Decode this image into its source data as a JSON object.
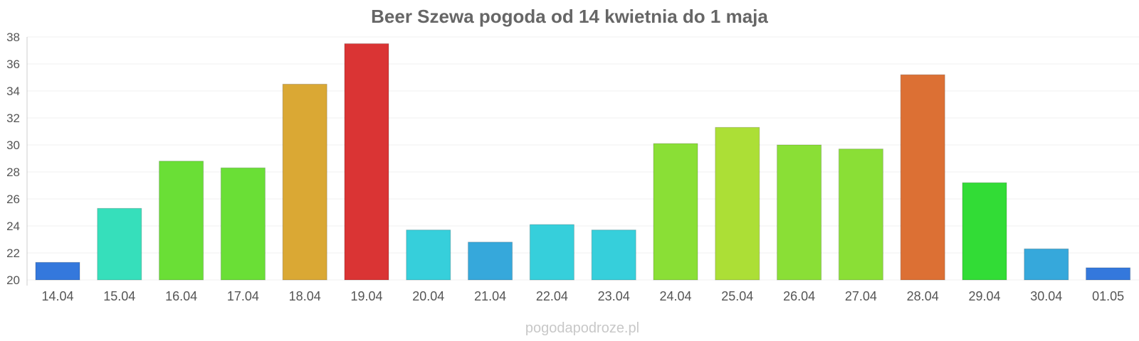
{
  "chart_data": {
    "type": "bar",
    "title": "Beer Szewa pogoda od 14 kwietnia do 1 maja",
    "xlabel": "",
    "ylabel": "",
    "ylim": [
      20,
      38
    ],
    "yticks": [
      20,
      22,
      24,
      26,
      28,
      30,
      32,
      34,
      36,
      38
    ],
    "grid": true,
    "legend": "none",
    "categories": [
      "14.04",
      "15.04",
      "16.04",
      "17.04",
      "18.04",
      "19.04",
      "20.04",
      "21.04",
      "22.04",
      "23.04",
      "24.04",
      "25.04",
      "26.04",
      "27.04",
      "28.04",
      "29.04",
      "30.04",
      "01.05"
    ],
    "values": [
      21.3,
      25.3,
      28.8,
      28.3,
      34.5,
      37.5,
      23.7,
      22.8,
      24.1,
      23.7,
      30.1,
      31.3,
      30.0,
      29.7,
      35.2,
      27.2,
      22.3,
      20.9
    ],
    "colors": [
      "#3478dc",
      "#36dfbb",
      "#6adf36",
      "#6adf36",
      "#daa834",
      "#da3434",
      "#36cfdb",
      "#36a8db",
      "#36cfdb",
      "#36cfdb",
      "#8adf36",
      "#acdf36",
      "#8adf36",
      "#8adf36",
      "#dc7034",
      "#32dc36",
      "#36a8db",
      "#3478dc"
    ]
  },
  "watermark": "pogodapodroze.pl"
}
